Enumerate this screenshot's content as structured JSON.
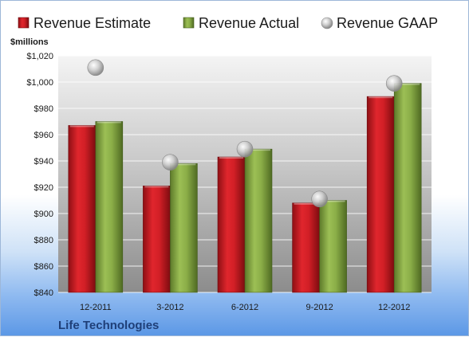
{
  "chart_data": {
    "type": "bar",
    "title": "",
    "unit_label": "$millions",
    "company": "Life Technologies",
    "categories": [
      "12-2011",
      "3-2012",
      "6-2012",
      "9-2012",
      "12-2012"
    ],
    "series": [
      {
        "name": "Revenue Estimate",
        "kind": "bar",
        "color": "#cc1c22",
        "values": [
          967,
          921,
          943,
          908,
          989
        ]
      },
      {
        "name": "Revenue Actual",
        "kind": "bar",
        "color": "#7fa23f",
        "values": [
          970,
          938,
          949,
          910,
          999
        ]
      },
      {
        "name": "Revenue GAAP",
        "kind": "marker",
        "color": "#a9a9a9",
        "values": [
          1011,
          939,
          949,
          911,
          999
        ]
      }
    ],
    "ylim": [
      840,
      1020
    ],
    "y_ticks": [
      "$840",
      "$860",
      "$880",
      "$900",
      "$920",
      "$940",
      "$960",
      "$980",
      "$1,000",
      "$1,020"
    ],
    "y_tick_values": [
      840,
      860,
      880,
      900,
      920,
      940,
      960,
      980,
      1000,
      1020
    ],
    "grid": true,
    "legend_position": "top"
  }
}
